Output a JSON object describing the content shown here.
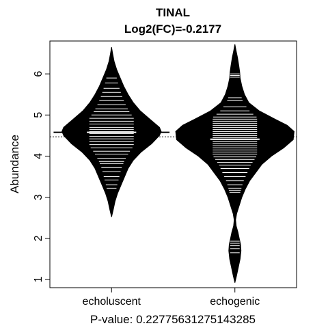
{
  "chart_data": {
    "type": "beanplot",
    "title": "TINAL",
    "subtitle": "Log2(FC)=-0.2177",
    "xlabel": "P-value: 0.22775631275143285",
    "ylabel": "Abundance",
    "ylim": [
      0.8,
      6.8
    ],
    "yticks": [
      1,
      2,
      3,
      4,
      5,
      6
    ],
    "overall_mean": 4.47,
    "colors": {
      "bean": "#000000",
      "lines": "#ffffff",
      "background": "#ffffff"
    },
    "groups": [
      {
        "label": "echoluscent",
        "mean": 4.58,
        "density": [
          [
            2.52,
            0
          ],
          [
            2.7,
            0.02
          ],
          [
            2.9,
            0.04
          ],
          [
            3.1,
            0.07
          ],
          [
            3.3,
            0.11
          ],
          [
            3.5,
            0.15
          ],
          [
            3.7,
            0.19
          ],
          [
            3.9,
            0.25
          ],
          [
            4.1,
            0.34
          ],
          [
            4.3,
            0.46
          ],
          [
            4.5,
            0.55
          ],
          [
            4.6,
            0.57
          ],
          [
            4.7,
            0.55
          ],
          [
            4.9,
            0.44
          ],
          [
            5.1,
            0.33
          ],
          [
            5.3,
            0.25
          ],
          [
            5.5,
            0.19
          ],
          [
            5.7,
            0.14
          ],
          [
            5.9,
            0.1
          ],
          [
            6.1,
            0.06
          ],
          [
            6.3,
            0.03
          ],
          [
            6.5,
            0.012
          ],
          [
            6.65,
            0
          ]
        ],
        "observations": [
          3.22,
          3.3,
          3.42,
          3.5,
          3.62,
          3.72,
          3.82,
          3.87,
          3.95,
          4.05,
          4.12,
          4.2,
          4.28,
          4.35,
          4.42,
          4.48,
          4.55,
          4.6,
          4.65,
          4.7,
          4.78,
          4.85,
          4.92,
          5.0,
          5.08,
          5.15,
          5.25,
          5.35,
          5.45,
          5.55,
          5.65,
          5.78,
          5.9
        ]
      },
      {
        "label": "echogenic",
        "mean": 4.41,
        "density": [
          [
            0.92,
            0
          ],
          [
            1.1,
            0.02
          ],
          [
            1.3,
            0.04
          ],
          [
            1.5,
            0.06
          ],
          [
            1.7,
            0.07
          ],
          [
            1.85,
            0.065
          ],
          [
            2.0,
            0.05
          ],
          [
            2.15,
            0.035
          ],
          [
            2.3,
            0.015
          ],
          [
            2.45,
            0.008
          ],
          [
            2.6,
            0.02
          ],
          [
            2.8,
            0.05
          ],
          [
            3.0,
            0.08
          ],
          [
            3.2,
            0.12
          ],
          [
            3.4,
            0.17
          ],
          [
            3.6,
            0.24
          ],
          [
            3.8,
            0.31
          ],
          [
            4.0,
            0.42
          ],
          [
            4.2,
            0.56
          ],
          [
            4.4,
            0.67
          ],
          [
            4.6,
            0.68
          ],
          [
            4.75,
            0.6
          ],
          [
            4.9,
            0.46
          ],
          [
            5.1,
            0.28
          ],
          [
            5.3,
            0.16
          ],
          [
            5.5,
            0.11
          ],
          [
            5.7,
            0.08
          ],
          [
            5.9,
            0.06
          ],
          [
            6.05,
            0.055
          ],
          [
            6.2,
            0.045
          ],
          [
            6.4,
            0.03
          ],
          [
            6.55,
            0.015
          ],
          [
            6.72,
            0
          ]
        ],
        "observations": [
          1.65,
          1.75,
          1.82,
          1.88,
          1.93,
          3.12,
          3.17,
          3.22,
          3.3,
          3.4,
          3.5,
          3.6,
          3.7,
          3.78,
          3.85,
          3.92,
          3.98,
          4.05,
          4.1,
          4.15,
          4.2,
          4.25,
          4.3,
          4.35,
          4.4,
          4.45,
          4.5,
          4.55,
          4.6,
          4.65,
          4.7,
          4.75,
          4.8,
          4.85,
          4.9,
          4.95,
          5.02,
          5.1,
          5.2,
          5.35,
          5.42,
          5.92,
          5.96,
          6.0
        ]
      }
    ]
  }
}
